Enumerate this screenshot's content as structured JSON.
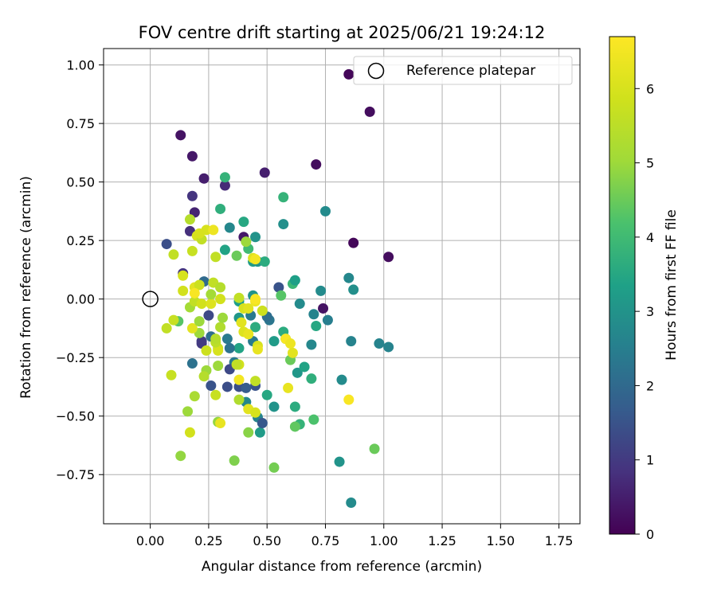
{
  "chart_data": {
    "type": "scatter",
    "title": "FOV centre drift starting at 2025/06/21 19:24:12",
    "xlabel": "Angular distance from reference (arcmin)",
    "ylabel": "Rotation from reference (arcmin)",
    "xlim": [
      -0.2,
      1.84
    ],
    "ylim": [
      -0.96,
      1.07
    ],
    "xticks": [
      0.0,
      0.25,
      0.5,
      0.75,
      1.0,
      1.25,
      1.5,
      1.75
    ],
    "xtick_labels": [
      "0.00",
      "0.25",
      "0.50",
      "0.75",
      "1.00",
      "1.25",
      "1.50",
      "1.75"
    ],
    "yticks": [
      -0.75,
      -0.5,
      -0.25,
      0.0,
      0.25,
      0.5,
      0.75,
      1.0
    ],
    "ytick_labels": [
      "−0.75",
      "−0.50",
      "−0.25",
      "0.00",
      "0.25",
      "0.50",
      "0.75",
      "1.00"
    ],
    "grid": true,
    "legend": {
      "position": "top-right",
      "entries": [
        "Reference platepar"
      ]
    },
    "reference_point": {
      "x": 0.0,
      "y": 0.0,
      "marker": "open-circle"
    },
    "colorbar": {
      "label": "Hours from first FF file",
      "colormap": "viridis",
      "range": [
        0,
        6.7
      ],
      "ticks": [
        0,
        1,
        2,
        3,
        4,
        5,
        6
      ],
      "tick_labels": [
        "0",
        "1",
        "2",
        "3",
        "4",
        "5",
        "6"
      ]
    },
    "points": [
      {
        "x": 0.85,
        "y": 0.96,
        "h": 0.1
      },
      {
        "x": 0.94,
        "y": 0.8,
        "h": 0.2
      },
      {
        "x": 0.13,
        "y": 0.7,
        "h": 0.3
      },
      {
        "x": 0.71,
        "y": 0.575,
        "h": 0.2
      },
      {
        "x": 0.18,
        "y": 0.61,
        "h": 0.4
      },
      {
        "x": 0.23,
        "y": 0.515,
        "h": 0.5
      },
      {
        "x": 0.49,
        "y": 0.54,
        "h": 0.5
      },
      {
        "x": 0.32,
        "y": 0.485,
        "h": 0.7
      },
      {
        "x": 0.18,
        "y": 0.44,
        "h": 0.9
      },
      {
        "x": 0.19,
        "y": 0.37,
        "h": 0.6
      },
      {
        "x": 0.17,
        "y": 0.29,
        "h": 0.8
      },
      {
        "x": 0.4,
        "y": 0.265,
        "h": 0.4
      },
      {
        "x": 0.87,
        "y": 0.24,
        "h": 0.1
      },
      {
        "x": 1.02,
        "y": 0.18,
        "h": 0.2
      },
      {
        "x": 0.07,
        "y": 0.235,
        "h": 1.4
      },
      {
        "x": 0.14,
        "y": 0.11,
        "h": 0.9
      },
      {
        "x": 0.74,
        "y": -0.04,
        "h": 0.3
      },
      {
        "x": 0.32,
        "y": 0.52,
        "h": 3.8
      },
      {
        "x": 0.57,
        "y": 0.435,
        "h": 3.8
      },
      {
        "x": 0.3,
        "y": 0.385,
        "h": 3.7
      },
      {
        "x": 0.4,
        "y": 0.33,
        "h": 3.5
      },
      {
        "x": 0.75,
        "y": 0.375,
        "h": 2.8
      },
      {
        "x": 0.57,
        "y": 0.32,
        "h": 2.9
      },
      {
        "x": 0.34,
        "y": 0.305,
        "h": 2.7
      },
      {
        "x": 0.45,
        "y": 0.265,
        "h": 3.0
      },
      {
        "x": 0.42,
        "y": 0.215,
        "h": 4.0
      },
      {
        "x": 0.37,
        "y": 0.185,
        "h": 4.5
      },
      {
        "x": 0.32,
        "y": 0.21,
        "h": 3.4
      },
      {
        "x": 0.44,
        "y": 0.16,
        "h": 3.2
      },
      {
        "x": 0.46,
        "y": 0.16,
        "h": 3.0
      },
      {
        "x": 0.49,
        "y": 0.16,
        "h": 3.6
      },
      {
        "x": 0.55,
        "y": 0.05,
        "h": 1.5
      },
      {
        "x": 0.61,
        "y": 0.065,
        "h": 3.9
      },
      {
        "x": 0.62,
        "y": 0.08,
        "h": 3.3
      },
      {
        "x": 0.56,
        "y": 0.015,
        "h": 4.3
      },
      {
        "x": 0.85,
        "y": 0.09,
        "h": 2.7
      },
      {
        "x": 0.87,
        "y": 0.04,
        "h": 2.9
      },
      {
        "x": 0.73,
        "y": 0.035,
        "h": 2.8
      },
      {
        "x": 0.64,
        "y": -0.02,
        "h": 2.8
      },
      {
        "x": 0.7,
        "y": -0.065,
        "h": 2.6
      },
      {
        "x": 0.76,
        "y": -0.09,
        "h": 2.5
      },
      {
        "x": 0.71,
        "y": -0.115,
        "h": 3.5
      },
      {
        "x": 0.51,
        "y": -0.09,
        "h": 2.3
      },
      {
        "x": 0.5,
        "y": -0.075,
        "h": 2.1
      },
      {
        "x": 0.44,
        "y": 0.015,
        "h": 3.0
      },
      {
        "x": 0.38,
        "y": -0.01,
        "h": 3.3
      },
      {
        "x": 0.43,
        "y": -0.07,
        "h": 2.4
      },
      {
        "x": 0.38,
        "y": -0.08,
        "h": 3.1
      },
      {
        "x": 0.45,
        "y": -0.12,
        "h": 3.6
      },
      {
        "x": 0.38,
        "y": -0.21,
        "h": 3.4
      },
      {
        "x": 0.44,
        "y": -0.18,
        "h": 2.4
      },
      {
        "x": 0.33,
        "y": -0.17,
        "h": 2.4
      },
      {
        "x": 0.34,
        "y": -0.21,
        "h": 2.2
      },
      {
        "x": 0.36,
        "y": -0.27,
        "h": 2.4
      },
      {
        "x": 0.34,
        "y": -0.3,
        "h": 1.3
      },
      {
        "x": 0.26,
        "y": -0.37,
        "h": 1.5
      },
      {
        "x": 0.33,
        "y": -0.375,
        "h": 1.4
      },
      {
        "x": 0.38,
        "y": -0.375,
        "h": 1.4
      },
      {
        "x": 0.45,
        "y": -0.37,
        "h": 1.5
      },
      {
        "x": 0.41,
        "y": -0.38,
        "h": 1.7
      },
      {
        "x": 0.22,
        "y": -0.18,
        "h": 1.1
      },
      {
        "x": 0.22,
        "y": -0.19,
        "h": 1.0
      },
      {
        "x": 0.26,
        "y": -0.16,
        "h": 2.1
      },
      {
        "x": 0.18,
        "y": -0.275,
        "h": 2.2
      },
      {
        "x": 0.25,
        "y": -0.07,
        "h": 1.3
      },
      {
        "x": 0.23,
        "y": 0.075,
        "h": 2.0
      },
      {
        "x": 0.53,
        "y": -0.18,
        "h": 3.2
      },
      {
        "x": 0.57,
        "y": -0.14,
        "h": 3.6
      },
      {
        "x": 0.58,
        "y": -0.17,
        "h": 4.0
      },
      {
        "x": 0.6,
        "y": -0.26,
        "h": 4.5
      },
      {
        "x": 0.63,
        "y": -0.315,
        "h": 3.1
      },
      {
        "x": 0.66,
        "y": -0.29,
        "h": 3.4
      },
      {
        "x": 0.69,
        "y": -0.34,
        "h": 3.7
      },
      {
        "x": 0.69,
        "y": -0.195,
        "h": 2.7
      },
      {
        "x": 0.86,
        "y": -0.18,
        "h": 2.6
      },
      {
        "x": 0.98,
        "y": -0.19,
        "h": 2.6
      },
      {
        "x": 1.02,
        "y": -0.205,
        "h": 2.6
      },
      {
        "x": 0.82,
        "y": -0.345,
        "h": 2.8
      },
      {
        "x": 0.81,
        "y": -0.695,
        "h": 3.0
      },
      {
        "x": 0.86,
        "y": -0.87,
        "h": 2.8
      },
      {
        "x": 0.5,
        "y": -0.41,
        "h": 3.5
      },
      {
        "x": 0.53,
        "y": -0.46,
        "h": 3.0
      },
      {
        "x": 0.62,
        "y": -0.46,
        "h": 3.6
      },
      {
        "x": 0.64,
        "y": -0.535,
        "h": 3.8
      },
      {
        "x": 0.7,
        "y": -0.515,
        "h": 4.2
      },
      {
        "x": 0.62,
        "y": -0.545,
        "h": 4.4
      },
      {
        "x": 0.47,
        "y": -0.57,
        "h": 3.2
      },
      {
        "x": 0.46,
        "y": -0.505,
        "h": 2.6
      },
      {
        "x": 0.48,
        "y": -0.53,
        "h": 1.6
      },
      {
        "x": 0.41,
        "y": -0.44,
        "h": 2.7
      },
      {
        "x": 0.96,
        "y": -0.64,
        "h": 4.5
      },
      {
        "x": 0.53,
        "y": -0.72,
        "h": 4.6
      },
      {
        "x": 0.36,
        "y": -0.69,
        "h": 4.7
      },
      {
        "x": 0.42,
        "y": -0.57,
        "h": 4.8
      },
      {
        "x": 0.13,
        "y": -0.67,
        "h": 4.9
      },
      {
        "x": 0.17,
        "y": -0.57,
        "h": 5.9
      },
      {
        "x": 0.16,
        "y": -0.48,
        "h": 5.0
      },
      {
        "x": 0.19,
        "y": -0.415,
        "h": 5.2
      },
      {
        "x": 0.28,
        "y": -0.41,
        "h": 5.7
      },
      {
        "x": 0.29,
        "y": -0.525,
        "h": 4.9
      },
      {
        "x": 0.3,
        "y": -0.53,
        "h": 6.3
      },
      {
        "x": 0.38,
        "y": -0.43,
        "h": 5.3
      },
      {
        "x": 0.42,
        "y": -0.47,
        "h": 6.2
      },
      {
        "x": 0.45,
        "y": -0.485,
        "h": 6.0
      },
      {
        "x": 0.45,
        "y": -0.35,
        "h": 5.6
      },
      {
        "x": 0.38,
        "y": -0.345,
        "h": 6.5
      },
      {
        "x": 0.38,
        "y": -0.28,
        "h": 5.9
      },
      {
        "x": 0.37,
        "y": -0.28,
        "h": 5.6
      },
      {
        "x": 0.29,
        "y": -0.285,
        "h": 5.0
      },
      {
        "x": 0.24,
        "y": -0.305,
        "h": 5.0
      },
      {
        "x": 0.23,
        "y": -0.33,
        "h": 5.4
      },
      {
        "x": 0.09,
        "y": -0.325,
        "h": 5.7
      },
      {
        "x": 0.29,
        "y": -0.21,
        "h": 5.7
      },
      {
        "x": 0.29,
        "y": -0.22,
        "h": 6.0
      },
      {
        "x": 0.28,
        "y": -0.185,
        "h": 5.5
      },
      {
        "x": 0.28,
        "y": -0.17,
        "h": 5.4
      },
      {
        "x": 0.3,
        "y": -0.12,
        "h": 5.3
      },
      {
        "x": 0.31,
        "y": -0.08,
        "h": 5.0
      },
      {
        "x": 0.24,
        "y": -0.22,
        "h": 5.8
      },
      {
        "x": 0.21,
        "y": -0.145,
        "h": 5.0
      },
      {
        "x": 0.18,
        "y": -0.125,
        "h": 6.2
      },
      {
        "x": 0.21,
        "y": -0.095,
        "h": 5.0
      },
      {
        "x": 0.17,
        "y": -0.035,
        "h": 5.1
      },
      {
        "x": 0.19,
        "y": -0.01,
        "h": 5.6
      },
      {
        "x": 0.22,
        "y": -0.02,
        "h": 5.9
      },
      {
        "x": 0.26,
        "y": -0.02,
        "h": 6.1
      },
      {
        "x": 0.3,
        "y": 0.0,
        "h": 5.9
      },
      {
        "x": 0.26,
        "y": 0.02,
        "h": 5.1
      },
      {
        "x": 0.27,
        "y": 0.07,
        "h": 5.6
      },
      {
        "x": 0.3,
        "y": 0.05,
        "h": 5.4
      },
      {
        "x": 0.14,
        "y": 0.035,
        "h": 5.9
      },
      {
        "x": 0.14,
        "y": 0.1,
        "h": 6.0
      },
      {
        "x": 0.19,
        "y": 0.05,
        "h": 6.2
      },
      {
        "x": 0.21,
        "y": 0.06,
        "h": 5.8
      },
      {
        "x": 0.19,
        "y": 0.025,
        "h": 6.6
      },
      {
        "x": 0.12,
        "y": -0.095,
        "h": 4.3
      },
      {
        "x": 0.1,
        "y": -0.09,
        "h": 5.7
      },
      {
        "x": 0.07,
        "y": -0.125,
        "h": 5.6
      },
      {
        "x": 0.1,
        "y": 0.19,
        "h": 5.6
      },
      {
        "x": 0.17,
        "y": 0.34,
        "h": 5.4
      },
      {
        "x": 0.18,
        "y": 0.205,
        "h": 5.7
      },
      {
        "x": 0.2,
        "y": 0.27,
        "h": 6.0
      },
      {
        "x": 0.22,
        "y": 0.255,
        "h": 5.6
      },
      {
        "x": 0.21,
        "y": 0.28,
        "h": 6.0
      },
      {
        "x": 0.24,
        "y": 0.295,
        "h": 6.0
      },
      {
        "x": 0.27,
        "y": 0.295,
        "h": 6.4
      },
      {
        "x": 0.28,
        "y": 0.18,
        "h": 5.6
      },
      {
        "x": 0.41,
        "y": 0.245,
        "h": 5.0
      },
      {
        "x": 0.44,
        "y": 0.175,
        "h": 6.1
      },
      {
        "x": 0.45,
        "y": 0.17,
        "h": 6.5
      },
      {
        "x": 0.38,
        "y": 0.005,
        "h": 5.6
      },
      {
        "x": 0.4,
        "y": -0.04,
        "h": 6.0
      },
      {
        "x": 0.42,
        "y": -0.04,
        "h": 6.2
      },
      {
        "x": 0.45,
        "y": -0.01,
        "h": 6.4
      },
      {
        "x": 0.45,
        "y": 0.0,
        "h": 6.6
      },
      {
        "x": 0.39,
        "y": -0.1,
        "h": 6.2
      },
      {
        "x": 0.4,
        "y": -0.14,
        "h": 6.1
      },
      {
        "x": 0.42,
        "y": -0.15,
        "h": 6.3
      },
      {
        "x": 0.46,
        "y": -0.2,
        "h": 6.0
      },
      {
        "x": 0.46,
        "y": -0.215,
        "h": 6.3
      },
      {
        "x": 0.48,
        "y": -0.05,
        "h": 5.8
      },
      {
        "x": 0.58,
        "y": -0.17,
        "h": 6.6
      },
      {
        "x": 0.6,
        "y": -0.19,
        "h": 6.4
      },
      {
        "x": 0.61,
        "y": -0.23,
        "h": 6.2
      },
      {
        "x": 0.59,
        "y": -0.38,
        "h": 6.3
      },
      {
        "x": 0.85,
        "y": -0.43,
        "h": 6.6
      }
    ]
  }
}
